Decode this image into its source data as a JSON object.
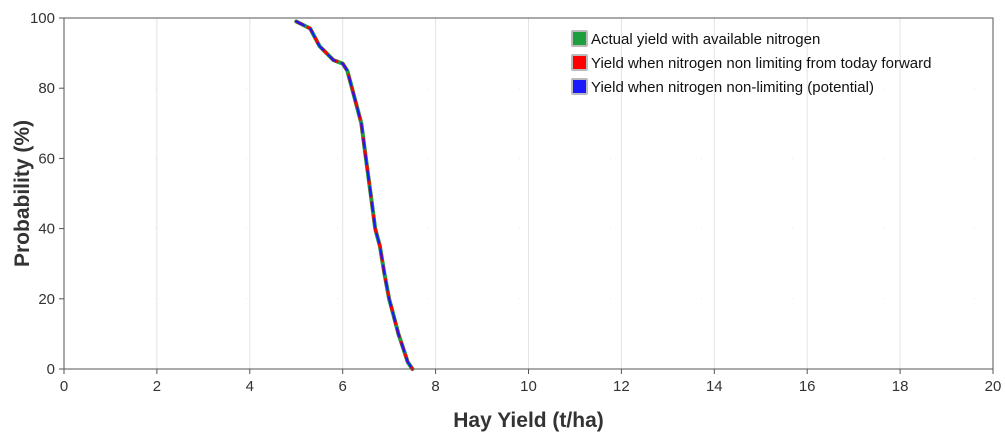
{
  "chart_data": {
    "type": "line",
    "title": "",
    "xlabel": "Hay Yield (t/ha)",
    "ylabel": "Probability (%)",
    "xlim": [
      0,
      20
    ],
    "ylim": [
      0,
      100
    ],
    "xticks": [
      0,
      2,
      4,
      6,
      8,
      10,
      12,
      14,
      16,
      18,
      20
    ],
    "yticks": [
      0,
      20,
      40,
      60,
      80,
      100
    ],
    "grid": true,
    "legend_position": "top-right",
    "series": [
      {
        "name": "Actual yield with available nitrogen",
        "color": "#1e9e3c",
        "x": [
          5.0,
          5.3,
          5.5,
          5.8,
          6.0,
          6.1,
          6.2,
          6.4,
          6.5,
          6.6,
          6.7,
          6.8,
          6.9,
          7.0,
          7.1,
          7.2,
          7.3,
          7.4,
          7.5
        ],
        "y": [
          99,
          97,
          92,
          88,
          87,
          85,
          80,
          70,
          60,
          50,
          40,
          35,
          27,
          20,
          15,
          10,
          6,
          2,
          0
        ]
      },
      {
        "name": "Yield when nitrogen non limiting from today forward",
        "color": "#ff0000",
        "x": [
          5.0,
          5.3,
          5.5,
          5.8,
          6.0,
          6.1,
          6.2,
          6.4,
          6.5,
          6.6,
          6.7,
          6.8,
          6.9,
          7.0,
          7.1,
          7.2,
          7.3,
          7.4,
          7.5
        ],
        "y": [
          99,
          97,
          92,
          88,
          87,
          85,
          80,
          70,
          60,
          50,
          40,
          35,
          27,
          20,
          15,
          10,
          6,
          2,
          0
        ]
      },
      {
        "name": "Yield when nitrogen non-limiting (potential)",
        "color": "#1a1aff",
        "x": [
          5.0,
          5.3,
          5.5,
          5.8,
          6.0,
          6.1,
          6.2,
          6.4,
          6.5,
          6.6,
          6.7,
          6.8,
          6.9,
          7.0,
          7.1,
          7.2,
          7.3,
          7.4,
          7.5
        ],
        "y": [
          99,
          97,
          92,
          88,
          87,
          85,
          80,
          70,
          60,
          50,
          40,
          35,
          27,
          20,
          15,
          10,
          6,
          2,
          0
        ]
      }
    ]
  }
}
